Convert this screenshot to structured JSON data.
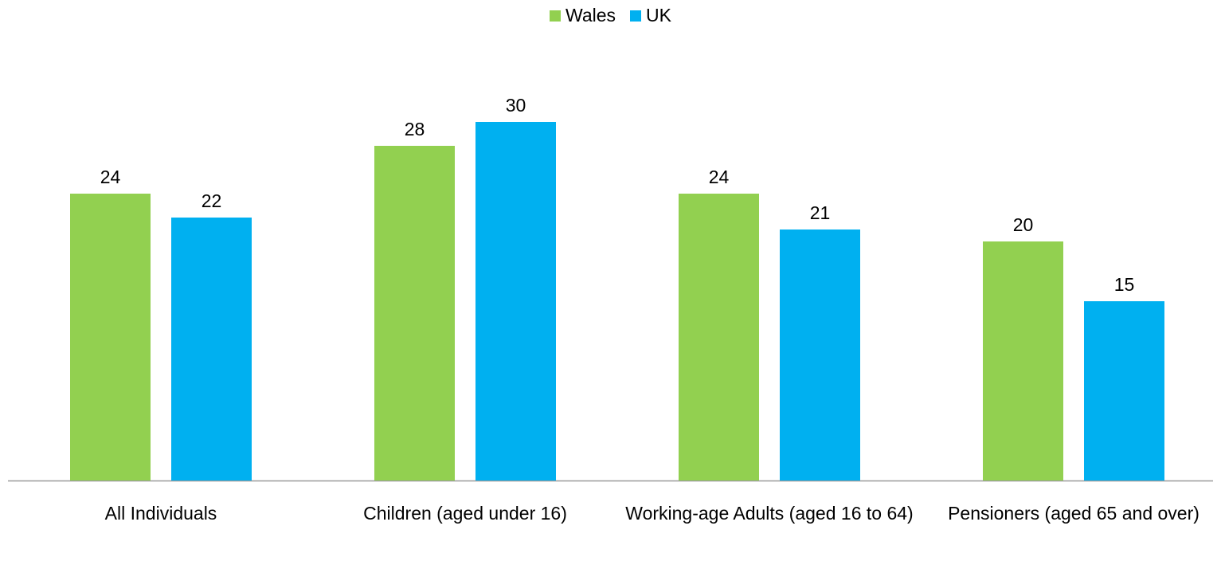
{
  "chart_data": {
    "type": "bar",
    "title": "",
    "xlabel": "",
    "ylabel": "",
    "ylim": [
      0,
      35
    ],
    "grid": false,
    "legend_position": "top-center",
    "categories": [
      "All Individuals",
      "Children (aged under 16)",
      "Working-age Adults (aged 16 to 64)",
      "Pensioners (aged 65 and over)"
    ],
    "series": [
      {
        "name": "Wales",
        "color": "#92d050",
        "values": [
          24,
          28,
          24,
          20
        ]
      },
      {
        "name": "UK",
        "color": "#00b0f0",
        "values": [
          22,
          30,
          21,
          15
        ]
      }
    ],
    "data_labels": true
  }
}
